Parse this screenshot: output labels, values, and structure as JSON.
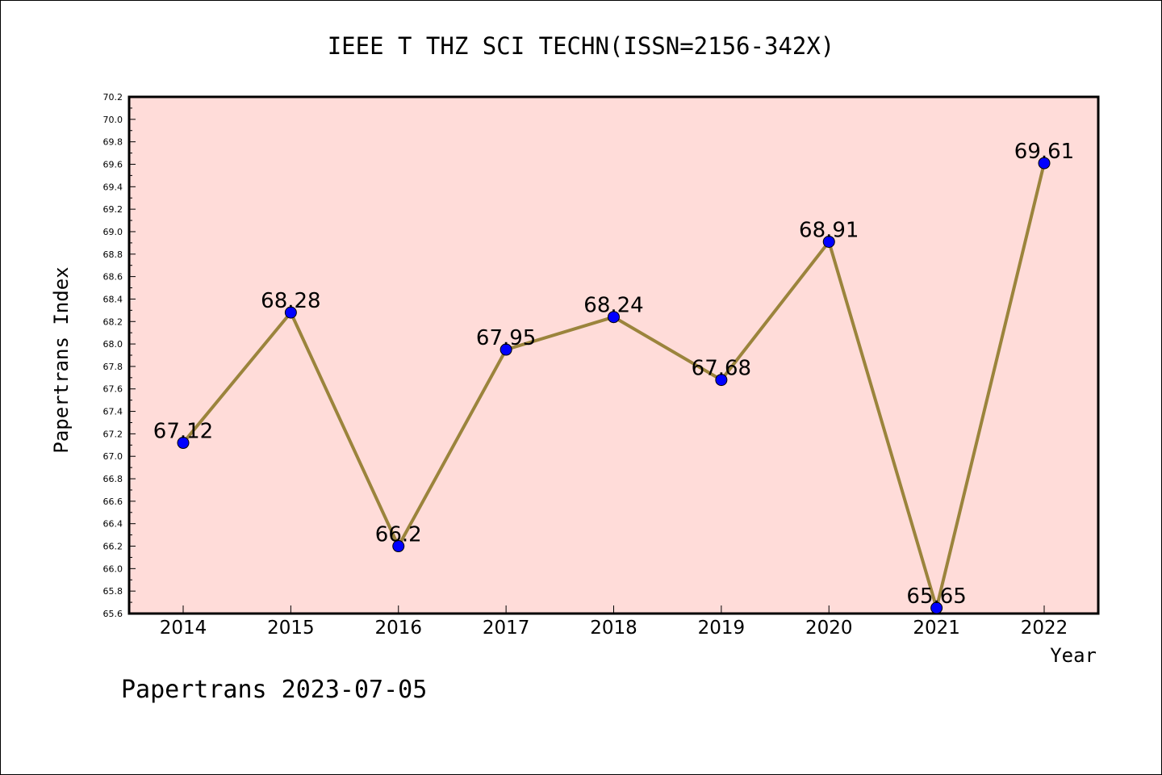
{
  "chart_data": {
    "type": "line",
    "title": "IEEE T THZ SCI TECHN(ISSN=2156-342X)",
    "xlabel": "Year",
    "ylabel": "Papertrans Index",
    "categories": [
      "2014",
      "2015",
      "2016",
      "2017",
      "2018",
      "2019",
      "2020",
      "2021",
      "2022"
    ],
    "values": [
      67.12,
      68.28,
      66.2,
      67.95,
      68.24,
      67.68,
      68.91,
      65.65,
      69.61
    ],
    "value_labels": [
      "67.12",
      "68.28",
      "66.2",
      "67.95",
      "68.24",
      "67.68",
      "68.91",
      "65.65",
      "69.61"
    ],
    "ylim": [
      65.6,
      70.2
    ],
    "yticks": [
      "65.6",
      "65.8",
      "66.0",
      "66.2",
      "66.4",
      "66.6",
      "66.8",
      "67.0",
      "67.2",
      "67.4",
      "67.6",
      "67.8",
      "68.0",
      "68.2",
      "68.4",
      "68.6",
      "68.8",
      "69.0",
      "69.2",
      "69.4",
      "69.6",
      "69.8",
      "70.0",
      "70.2"
    ],
    "grid": false,
    "colors": {
      "plot_background": "#ffdcd9",
      "line": "#9b843c",
      "marker": "#0000ff"
    }
  },
  "footer": {
    "watermark": "Papertrans 2023-07-05"
  }
}
